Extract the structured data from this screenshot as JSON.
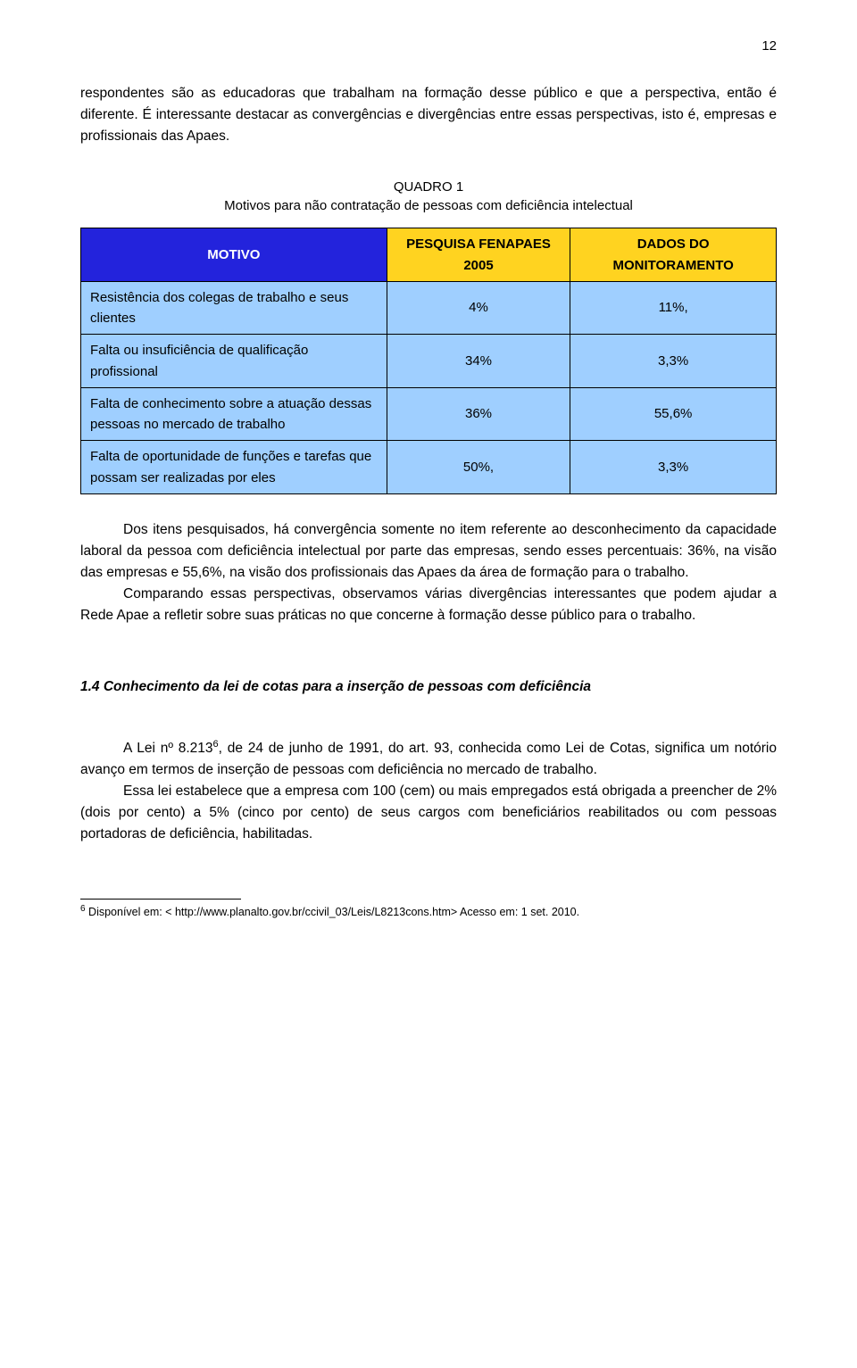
{
  "page_number": "12",
  "para1a": "respondentes são as educadoras que trabalham na formação desse público e que a perspectiva, então é diferente. É interessante destacar as convergências e divergências entre essas perspectivas, isto é, empresas e profissionais das Apaes.",
  "table": {
    "caption_line1": "QUADRO 1",
    "caption_line2": "Motivos para não contratação de pessoas com deficiência intelectual",
    "header_bg_motivo": "#2323dc",
    "header_fg_motivo": "#ffffff",
    "header_bg_data": "#ffd320",
    "header_fg_data": "#000000",
    "row_bg": "#9fcfff",
    "col_motivo": "MOTIVO",
    "col_pesquisa": "PESQUISA FENAPAES 2005",
    "col_dados": "DADOS DO MONITORAMENTO",
    "rows": [
      {
        "label": "Resistência dos colegas de trabalho e seus clientes",
        "v1": "4%",
        "v2": "11%,"
      },
      {
        "label": "Falta ou insuficiência de qualificação profissional",
        "v1": "34%",
        "v2": "3,3%"
      },
      {
        "label": "Falta de conhecimento sobre a atuação dessas pessoas no mercado de trabalho",
        "v1": "36%",
        "v2": "55,6%"
      },
      {
        "label": "Falta de oportunidade de funções e tarefas que possam ser realizadas por eles",
        "v1": "50%,",
        "v2": "3,3%"
      }
    ]
  },
  "para2": "Dos itens pesquisados, há convergência somente no item referente ao desconhecimento da capacidade laboral da pessoa com deficiência intelectual por parte das empresas, sendo esses percentuais: 36%, na visão das empresas e 55,6%, na visão dos profissionais das Apaes da área de formação para o trabalho.",
  "para3": "Comparando essas perspectivas, observamos várias divergências interessantes que podem ajudar a Rede Apae a refletir sobre suas práticas no que concerne à formação desse público para o trabalho.",
  "section_heading": "1.4 Conhecimento da lei de cotas para a inserção de pessoas com deficiência",
  "para4_pre": "A Lei nº 8.213",
  "para4_sup": "6",
  "para4_post": ", de 24 de junho de 1991, do art. 93, conhecida como Lei de Cotas, significa um notório avanço em termos de inserção de pessoas com deficiência no mercado de trabalho.",
  "para5": "Essa lei estabelece que a empresa com 100 (cem) ou mais empregados está obrigada a preencher de 2% (dois por cento) a 5% (cinco por cento) de seus cargos com beneficiários reabilitados ou com pessoas portadoras de deficiência, habilitadas.",
  "footnote_num": "6",
  "footnote_text": " Disponível em: < http://www.planalto.gov.br/ccivil_03/Leis/L8213cons.htm> Acesso em: 1 set. 2010."
}
